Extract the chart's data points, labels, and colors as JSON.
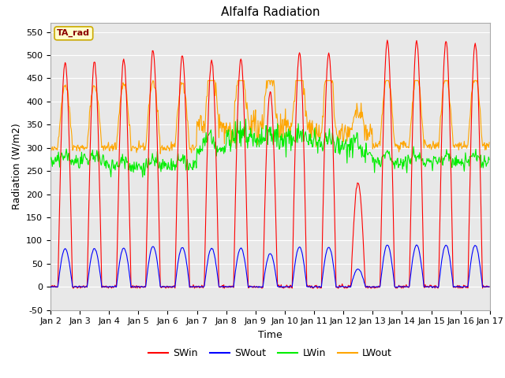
{
  "title": "Alfalfa Radiation",
  "xlabel": "Time",
  "ylabel": "Radiation (W/m2)",
  "ylim": [
    -50,
    570
  ],
  "legend_label": "TA_rad",
  "series_colors": {
    "SWin": "#ff0000",
    "SWout": "#0000ff",
    "LWin": "#00ee00",
    "LWout": "#ffa500"
  },
  "xtick_labels": [
    "Jan 2",
    "Jan 3",
    "Jan 4",
    "Jan 5",
    "Jan 6",
    "Jan 7",
    "Jan 8",
    "Jan 9",
    "Jan 10",
    "Jan 11",
    "Jan 12",
    "Jan 13",
    "Jan 14",
    "Jan 15",
    "Jan 16",
    "Jan 17"
  ],
  "ytick_values": [
    -50,
    0,
    50,
    100,
    150,
    200,
    250,
    300,
    350,
    400,
    450,
    500,
    550
  ],
  "background_color": "#e8e8e8",
  "fig_color": "#ffffff",
  "title_fontsize": 11,
  "axis_label_fontsize": 9,
  "tick_fontsize": 8,
  "legend_fontsize": 9
}
